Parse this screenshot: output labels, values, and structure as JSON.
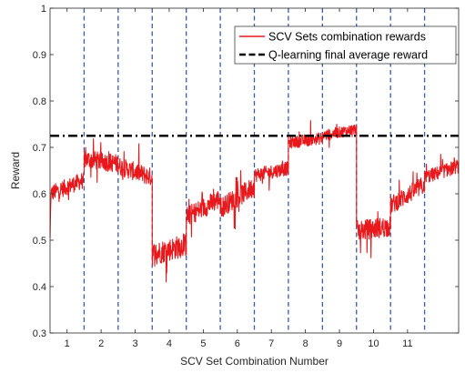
{
  "chart_data": {
    "type": "line",
    "title": "",
    "xlabel": "SCV Set Combination Number",
    "ylabel": "Reward",
    "xlim": [
      0.5,
      12.5
    ],
    "ylim": [
      0.3,
      1.0
    ],
    "x_ticks": [
      1,
      2,
      3,
      4,
      5,
      6,
      7,
      8,
      9,
      10,
      11
    ],
    "x_tick_labels": [
      "1",
      "2",
      "3",
      "4",
      "5",
      "6",
      "7",
      "8",
      "9",
      "10",
      "11"
    ],
    "y_ticks": [
      0.3,
      0.4,
      0.5,
      0.6,
      0.7,
      0.8,
      0.9,
      1.0
    ],
    "y_tick_labels": [
      "0.3",
      "0.4",
      "0.5",
      "0.6",
      "0.7",
      "0.8",
      "0.9",
      "1"
    ],
    "grid": "vertical dashed separators",
    "legend_position": "top-right",
    "separators_x": [
      1.5,
      2.5,
      3.5,
      4.5,
      5.5,
      6.5,
      7.5,
      8.5,
      9.5,
      10.5,
      11.5
    ],
    "separator_color": "#3b5ba5",
    "series": [
      {
        "name": "SCV Sets combination rewards",
        "color": "#e8191c",
        "segments": [
          {
            "x_range": [
              0.5,
              1.5
            ],
            "start": 0.6,
            "end": 0.63,
            "noise": 0.018
          },
          {
            "x_range": [
              1.5,
              2.5
            ],
            "start": 0.675,
            "end": 0.665,
            "noise": 0.02
          },
          {
            "x_range": [
              2.5,
              3.5
            ],
            "start": 0.66,
            "end": 0.635,
            "noise": 0.02
          },
          {
            "x_range": [
              3.5,
              4.5
            ],
            "start": 0.47,
            "end": 0.49,
            "noise": 0.025
          },
          {
            "x_range": [
              4.5,
              5.5
            ],
            "start": 0.55,
            "end": 0.59,
            "noise": 0.022
          },
          {
            "x_range": [
              5.5,
              6.5
            ],
            "start": 0.57,
            "end": 0.615,
            "noise": 0.022
          },
          {
            "x_range": [
              6.5,
              7.5
            ],
            "start": 0.64,
            "end": 0.655,
            "noise": 0.015
          },
          {
            "x_range": [
              7.5,
              8.5
            ],
            "start": 0.71,
            "end": 0.72,
            "noise": 0.013
          },
          {
            "x_range": [
              8.5,
              9.5
            ],
            "start": 0.725,
            "end": 0.74,
            "noise": 0.012
          },
          {
            "x_range": [
              9.5,
              10.5
            ],
            "start": 0.52,
            "end": 0.53,
            "noise": 0.022
          },
          {
            "x_range": [
              10.5,
              11.5
            ],
            "start": 0.575,
            "end": 0.62,
            "noise": 0.02
          },
          {
            "x_range": [
              11.5,
              12.5
            ],
            "start": 0.635,
            "end": 0.66,
            "noise": 0.015
          }
        ]
      },
      {
        "name": "Q-learning final average reward",
        "color": "#000000",
        "value": 0.725
      }
    ]
  }
}
